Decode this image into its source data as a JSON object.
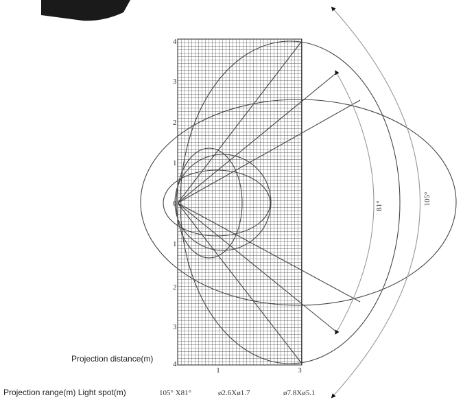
{
  "axis": {
    "y_labels": [
      "4",
      "3",
      "2",
      "1",
      "0",
      "1",
      "2",
      "3",
      "4"
    ],
    "x_labels": [
      "1",
      "3"
    ]
  },
  "angles": {
    "inner": "81°",
    "outer": "105°"
  },
  "captions": {
    "distance": "Projection distance(m)",
    "range": "Projection range(m) Light spot(m)",
    "angle": "105° X81°",
    "spot_near": "ø2.6Xø1.7",
    "spot_far": "ø7.8Xø5.1"
  }
}
